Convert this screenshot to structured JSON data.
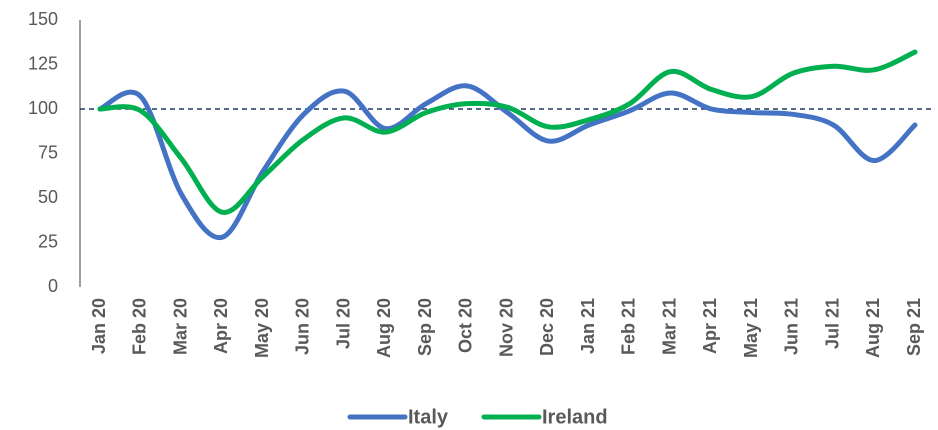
{
  "chart_data": {
    "type": "line",
    "categories": [
      "Jan 20",
      "Feb 20",
      "Mar 20",
      "Apr 20",
      "May 20",
      "Jun 20",
      "Jul 20",
      "Aug 20",
      "Sep 20",
      "Oct 20",
      "Nov 20",
      "Dec 20",
      "Jan 21",
      "Feb 21",
      "Mar 21",
      "Apr 21",
      "May 21",
      "Jun 21",
      "Jul 21",
      "Aug 21",
      "Sep 21"
    ],
    "series": [
      {
        "name": "Italy",
        "color": "#4472c4",
        "values": [
          100,
          107,
          52,
          28,
          65,
          97,
          110,
          89,
          103,
          113,
          98,
          82,
          91,
          99,
          109,
          100,
          98,
          97,
          91,
          71,
          91
        ]
      },
      {
        "name": "Ireland",
        "color": "#00b050",
        "values": [
          100,
          99,
          72,
          42,
          62,
          83,
          95,
          87,
          98,
          103,
          101,
          90,
          94,
          103,
          121,
          111,
          107,
          120,
          124,
          122,
          132
        ]
      }
    ],
    "ylim": [
      0,
      150
    ],
    "yticks": [
      0,
      25,
      50,
      75,
      100,
      125,
      150
    ],
    "reference_line": 100,
    "legend": "bottom",
    "smooth": true
  }
}
